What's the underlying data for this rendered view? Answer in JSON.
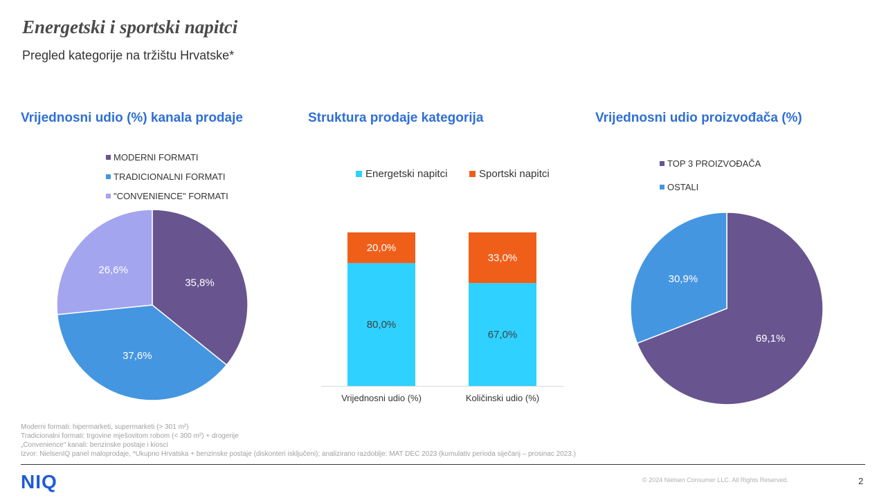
{
  "page": {
    "title": "Energetski i sportski napitci",
    "subtitle": "Pregled kategorije na tržištu Hrvatske*",
    "page_number": "2",
    "logo": "NIQ",
    "copyright": "© 2024 Nielsen Consumer LLC. All Rights Reserved."
  },
  "footnotes": [
    "Moderni formati: hipermarketi, supermarketi (> 301 m²)",
    "Tradicionalni formati: trgovine mješovitom robom (< 300 m²) + drogerije",
    "„Convenience\" kanali: benzinske postaje i kiosci",
    "Izvor: NielsenIQ panel maloprodaje, *Ukupno Hrvatska + benzinske postaje (diskonteri isključeni); analizirano razdoblje: MAT DEC 2023 (kumulativ perioda siječanj – prosinac 2023.)"
  ],
  "chart_data": [
    {
      "type": "pie",
      "title": "Vrijednosni udio (%) kanala prodaje",
      "labels": [
        "MODERNI FORMATI",
        "TRADICIONALNI FORMATI",
        "\"CONVENIENCE\" FORMATI"
      ],
      "values": [
        35.8,
        37.6,
        26.6
      ],
      "value_labels": [
        "35,8%",
        "37,6%",
        "26,6%"
      ],
      "colors": [
        "#68548f",
        "#4596e0",
        "#a3a5ef"
      ],
      "legend": "top"
    },
    {
      "type": "bar",
      "stacked": true,
      "title": "Struktura prodaje kategorija",
      "categories": [
        "Vrijednosni udio (%)",
        "Količinski udio (%)"
      ],
      "series": [
        {
          "name": "Energetski napitci",
          "values": [
            80.0,
            67.0
          ],
          "value_labels": [
            "80,0%",
            "67,0%"
          ],
          "color": "#2ed1ff"
        },
        {
          "name": "Sportski napitci",
          "values": [
            20.0,
            33.0
          ],
          "value_labels": [
            "20,0%",
            "33,0%"
          ],
          "color": "#ef5f1a"
        }
      ],
      "ylim": [
        0,
        100
      ],
      "legend": "top"
    },
    {
      "type": "pie",
      "title": "Vrijednosni udio proizvođača (%)",
      "labels": [
        "TOP 3 PROIZVOĐAČA",
        "OSTALI"
      ],
      "values": [
        69.1,
        30.9
      ],
      "value_labels": [
        "69,1%",
        "30,9%"
      ],
      "colors": [
        "#68548f",
        "#4596e0"
      ],
      "legend": "top"
    }
  ]
}
